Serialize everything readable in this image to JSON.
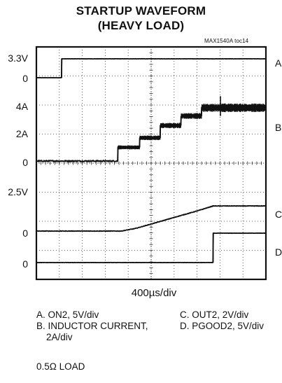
{
  "chart_data": {
    "type": "line",
    "title": "STARTUP WAVEFORM",
    "subtitle": "(HEAVY LOAD)",
    "figure_tag": "MAX1540A toc14",
    "xlabel": "400µs/div",
    "grid": true,
    "x_divisions": 10,
    "y_divisions": 8,
    "x_unit": "div",
    "tick_labels": [
      {
        "text": "3.3V",
        "channel": "A",
        "level": 3.3
      },
      {
        "text": "0",
        "channel": "A",
        "level": 0
      },
      {
        "text": "4A",
        "channel": "B",
        "level": 4
      },
      {
        "text": "2A",
        "channel": "B",
        "level": 2
      },
      {
        "text": "0",
        "channel": "B",
        "level": 0
      },
      {
        "text": "2.5V",
        "channel": "C",
        "level": 2.5
      },
      {
        "text": "0",
        "channel": "C",
        "level": 0
      },
      {
        "text": "0",
        "channel": "D",
        "level": 0
      }
    ],
    "series": [
      {
        "name": "A",
        "unit": "V",
        "noise": 0.02,
        "x": [
          0,
          1.1,
          1.1,
          10
        ],
        "y": [
          0,
          0,
          3.3,
          3.3
        ]
      },
      {
        "name": "B",
        "unit": "A",
        "noise": 0.05,
        "x": [
          0,
          3.55,
          3.55,
          4.5,
          4.5,
          5.4,
          5.4,
          6.3,
          6.3,
          7.2,
          7.2,
          8.0,
          8.0,
          10
        ],
        "y": [
          0,
          0,
          1.0,
          1.0,
          1.7,
          1.7,
          2.6,
          2.6,
          3.3,
          3.3,
          3.9,
          3.9,
          3.9,
          3.9
        ],
        "noise_segments": [
          {
            "x0": 3.55,
            "x1": 4.5,
            "amp": 0.15
          },
          {
            "x0": 4.5,
            "x1": 5.4,
            "amp": 0.17
          },
          {
            "x0": 5.4,
            "x1": 6.3,
            "amp": 0.2
          },
          {
            "x0": 6.3,
            "x1": 7.2,
            "amp": 0.22
          },
          {
            "x0": 7.2,
            "x1": 8.0,
            "amp": 0.3
          },
          {
            "x0": 8.0,
            "x1": 10,
            "amp": 0.32
          }
        ]
      },
      {
        "name": "C",
        "unit": "V",
        "noise": 0.015,
        "x": [
          0,
          3.7,
          4.3,
          5.2,
          6.1,
          7.0,
          7.7,
          7.7,
          8.0,
          10
        ],
        "y": [
          0,
          0,
          0.16,
          0.53,
          0.91,
          1.28,
          1.6,
          1.6,
          1.6,
          1.6
        ]
      },
      {
        "name": "D",
        "unit": "V",
        "noise": 0.02,
        "x": [
          0,
          7.7,
          7.7,
          10
        ],
        "y": [
          0,
          0,
          5.0,
          5.0
        ]
      }
    ]
  },
  "legend": {
    "a": "A. ON2, 5V/div",
    "b1": "B. INDUCTOR CURRENT,",
    "b2": "2A/div",
    "c": "C. OUT2, 2V/div",
    "d": "D. PGOOD2, 5V/div"
  },
  "note": "0.5Ω LOAD",
  "colors": {
    "trace": "#111111",
    "grid": "#333333"
  }
}
